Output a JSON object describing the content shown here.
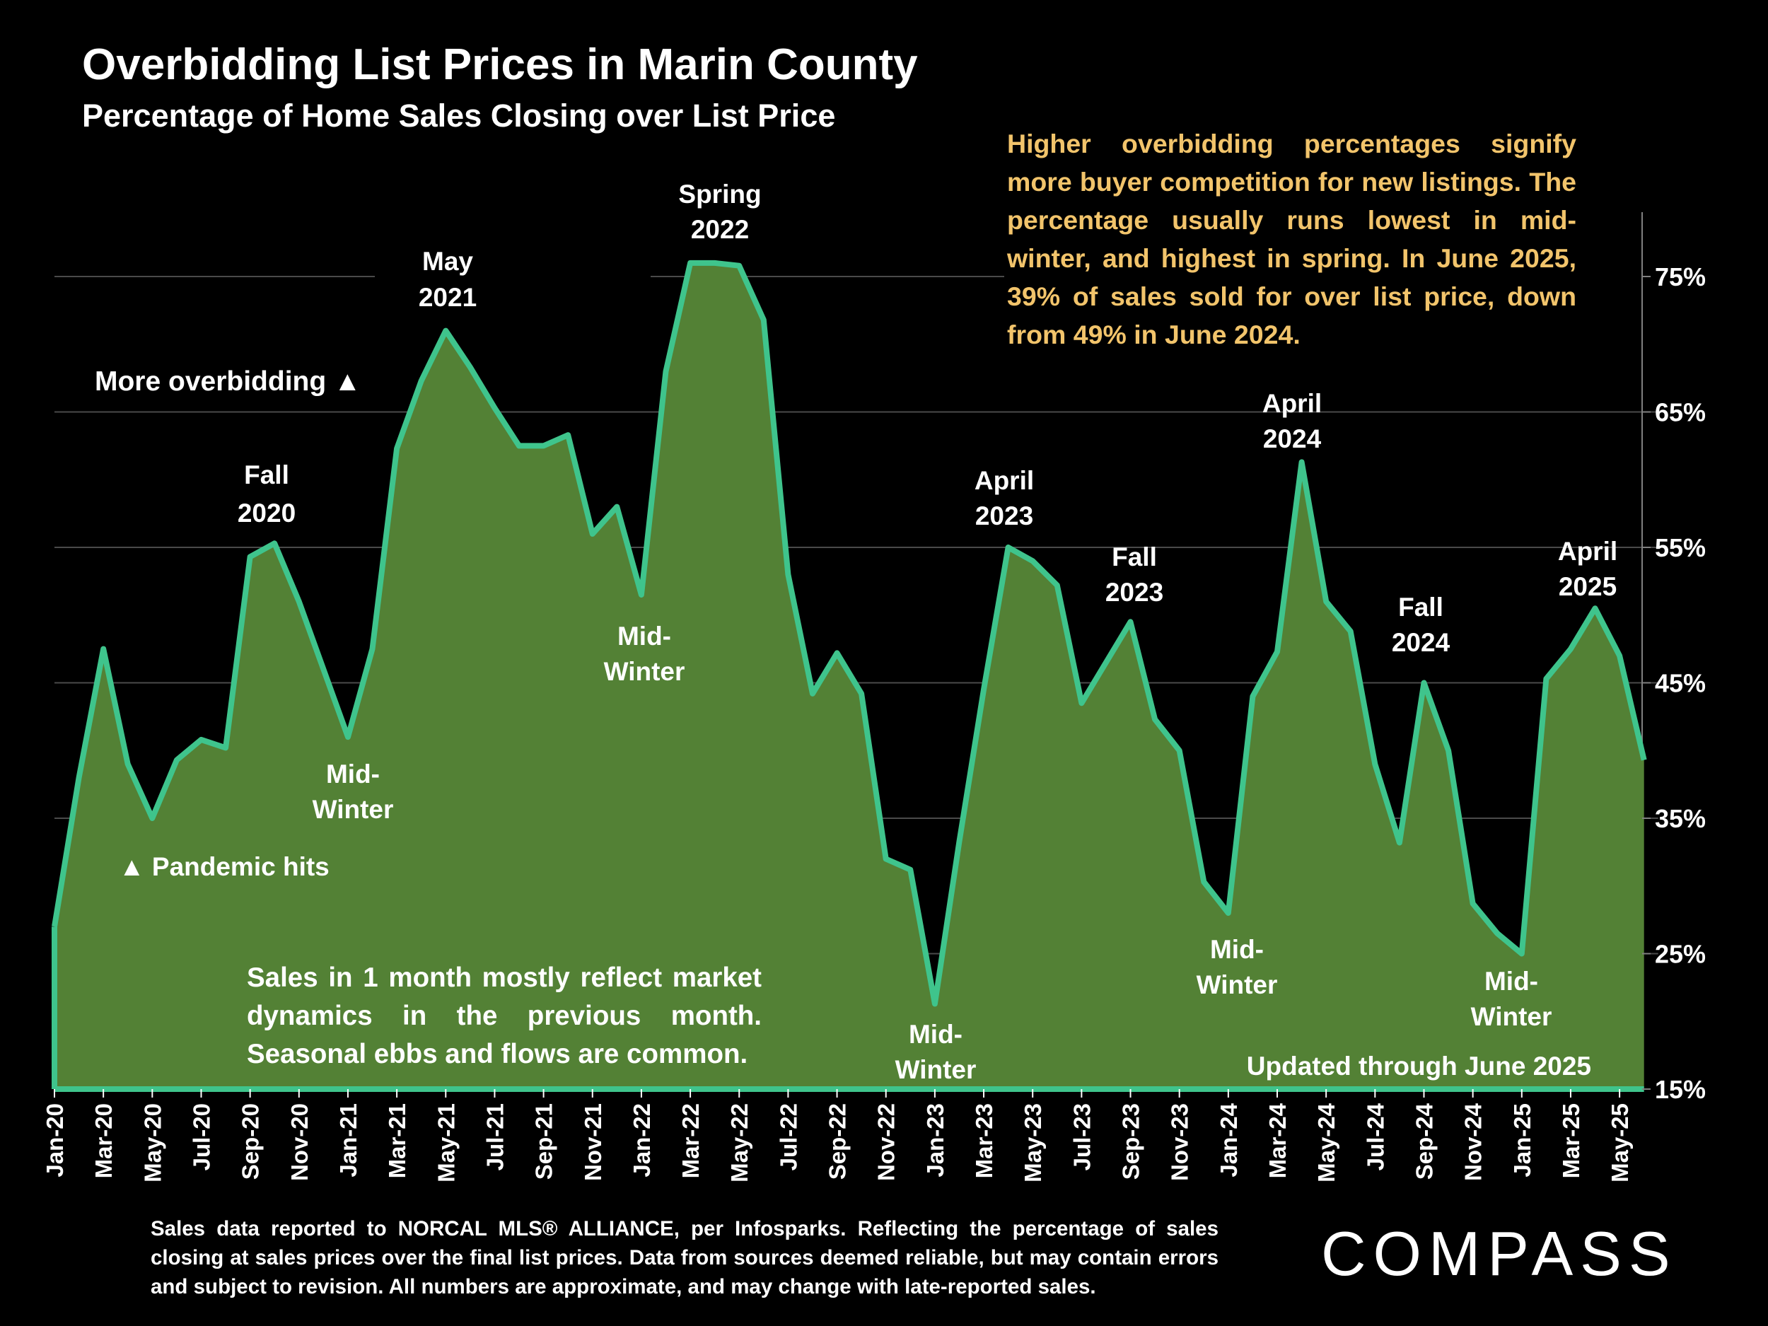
{
  "title": "Overbidding List Prices in Marin County",
  "subtitle": "Percentage of Home Sales Closing over List Price",
  "note_top": "Higher overbidding percentages signify more buyer competition for new listings. The percentage usually runs lowest in mid-winter, and highest in spring. In June 2025, 39% of sales sold for over list price, down from 49% in June 2024.",
  "note_bottom": "Sales in 1 month mostly reflect market dynamics in the previous month. Seasonal ebbs and flows are common.",
  "source_note": "Sales data reported to NORCAL MLS® ALLIANCE, per Infosparks. Reflecting the percentage of sales closing at sales prices over the final list prices. Data from sources deemed reliable, but may contain errors and subject to revision. All numbers are approximate, and may change with late-reported sales.",
  "updated": "Updated through June 2025",
  "brand": "COMPASS",
  "colors": {
    "fill": "#538135",
    "line": "#3fc48c",
    "note": "#f2c46b",
    "grid": "#4a4a4a",
    "background": "#000000"
  },
  "chart_data": {
    "type": "area",
    "x": [
      "Jan-20",
      "Feb-20",
      "Mar-20",
      "Apr-20",
      "May-20",
      "Jun-20",
      "Jul-20",
      "Aug-20",
      "Sep-20",
      "Oct-20",
      "Nov-20",
      "Dec-20",
      "Jan-21",
      "Feb-21",
      "Mar-21",
      "Apr-21",
      "May-21",
      "Jun-21",
      "Jul-21",
      "Aug-21",
      "Sep-21",
      "Oct-21",
      "Nov-21",
      "Dec-21",
      "Jan-22",
      "Feb-22",
      "Mar-22",
      "Apr-22",
      "May-22",
      "Jun-22",
      "Jul-22",
      "Aug-22",
      "Sep-22",
      "Oct-22",
      "Nov-22",
      "Dec-22",
      "Jan-23",
      "Feb-23",
      "Mar-23",
      "Apr-23",
      "May-23",
      "Jun-23",
      "Jul-23",
      "Aug-23",
      "Sep-23",
      "Oct-23",
      "Nov-23",
      "Dec-23",
      "Jan-24",
      "Feb-24",
      "Mar-24",
      "Apr-24",
      "May-24",
      "Jun-24",
      "Jul-24",
      "Aug-24",
      "Sep-24",
      "Oct-24",
      "Nov-24",
      "Dec-24",
      "Jan-25",
      "Feb-25",
      "Mar-25",
      "Apr-25",
      "May-25",
      "Jun-25"
    ],
    "values": [
      27,
      38,
      47.5,
      39,
      35,
      39.3,
      40.8,
      40.2,
      54.3,
      55.3,
      51,
      46,
      41,
      47.5,
      62.3,
      67.3,
      71,
      68.3,
      65.3,
      62.5,
      62.5,
      63.3,
      56,
      58,
      51.5,
      68,
      76,
      76,
      75.8,
      71.8,
      53,
      44.2,
      47.2,
      44.2,
      32,
      31.2,
      21.3,
      33.3,
      44.5,
      55,
      54,
      52.2,
      43.5,
      46.5,
      49.5,
      42.3,
      40,
      30.3,
      28,
      44,
      47.3,
      61.3,
      51,
      48.8,
      39,
      33.2,
      45,
      40,
      28.7,
      26.5,
      25,
      45.3,
      47.5,
      50.5,
      47,
      39.3
    ],
    "x_tick_labels": [
      "Jan-20",
      "Mar-20",
      "May-20",
      "Jul-20",
      "Sep-20",
      "Nov-20",
      "Jan-21",
      "Mar-21",
      "May-21",
      "Jul-21",
      "Sep-21",
      "Nov-21",
      "Jan-22",
      "Mar-22",
      "May-22",
      "Jul-22",
      "Sep-22",
      "Nov-22",
      "Jan-23",
      "Mar-23",
      "May-23",
      "Jul-23",
      "Sep-23",
      "Nov-23",
      "Jan-24",
      "Mar-24",
      "May-24",
      "Jul-24",
      "Sep-24",
      "Nov-24",
      "Jan-25",
      "Mar-25",
      "May-25"
    ],
    "y_ticks": [
      "15%",
      "25%",
      "35%",
      "45%",
      "55%",
      "65%",
      "75%"
    ],
    "ylim": [
      15,
      80
    ],
    "y_axis_side": "right",
    "grid": true,
    "annotations": [
      {
        "label": "Fall 2020",
        "x": "Oct-20"
      },
      {
        "label": "May 2021",
        "x": "May-21"
      },
      {
        "label": "Spring 2022",
        "x": "Apr-22"
      },
      {
        "label": "April 2023",
        "x": "Apr-23"
      },
      {
        "label": "Fall 2023",
        "x": "Sep-23"
      },
      {
        "label": "April 2024",
        "x": "Apr-24"
      },
      {
        "label": "Fall 2024",
        "x": "Sep-24"
      },
      {
        "label": "April 2025",
        "x": "Apr-25"
      },
      {
        "label": "Mid- Winter",
        "x": "Jan-21"
      },
      {
        "label": "Mid- Winter",
        "x": "Jan-22"
      },
      {
        "label": "Mid- Winter",
        "x": "Jan-23"
      },
      {
        "label": "Mid- Winter",
        "x": "Jan-24"
      },
      {
        "label": "Mid- Winter",
        "x": "Jan-25"
      },
      {
        "label": "More overbidding ▲"
      },
      {
        "label": "▲ Pandemic hits"
      }
    ]
  }
}
